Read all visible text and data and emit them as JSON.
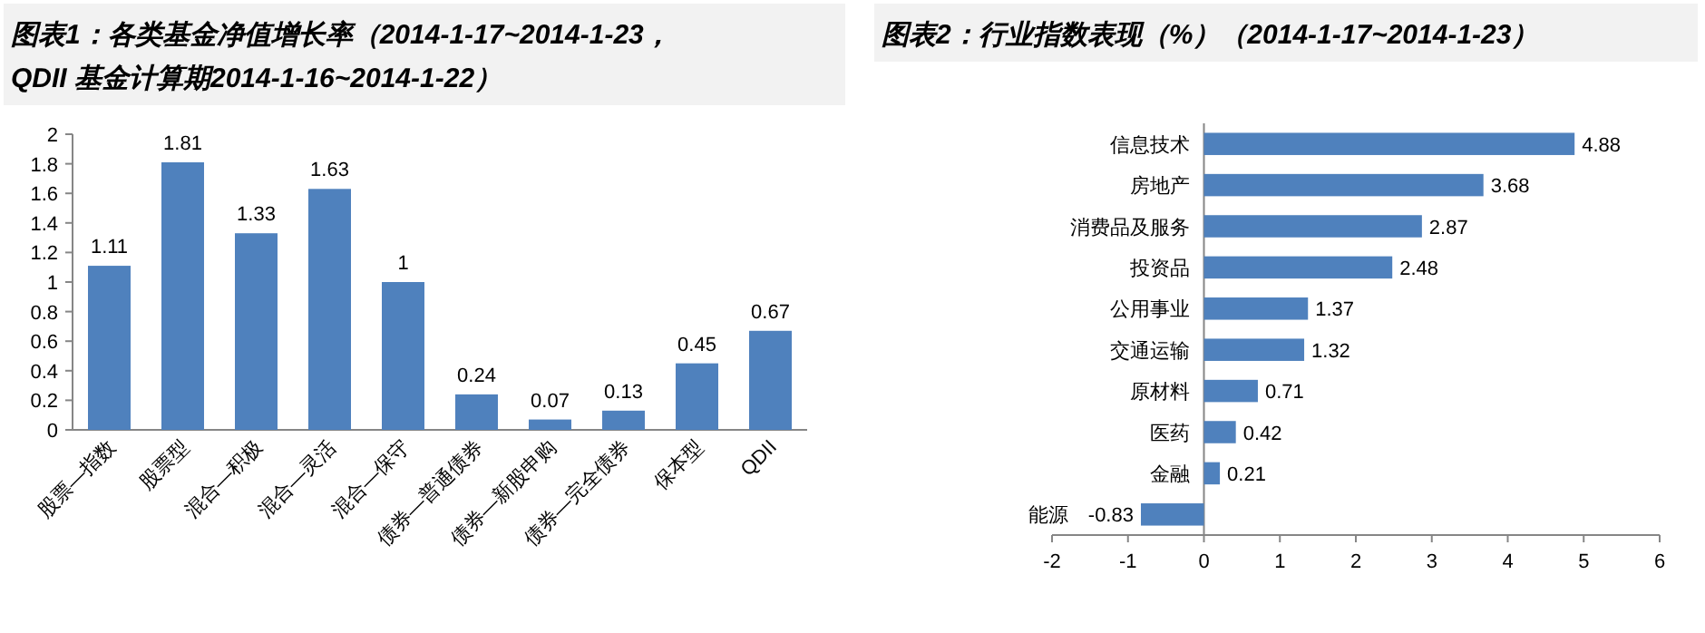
{
  "chart_data": [
    {
      "type": "bar",
      "title": "图表1：各类基金净值增长率（2014-1-17~2014-1-23，QDII 基金计算期2014-1-16~2014-1-22）",
      "categories": [
        "股票—指数",
        "股票型",
        "混合—积极",
        "混合—灵活",
        "混合—保守",
        "债券—普通债券",
        "债券—新股申购",
        "债券—完全债券",
        "保本型",
        "QDII"
      ],
      "values": [
        1.11,
        1.81,
        1.33,
        1.63,
        1,
        0.24,
        0.07,
        0.13,
        0.45,
        0.67
      ],
      "color": "#4f81bd",
      "data_labels": true,
      "ylim": [
        0,
        2
      ],
      "yticks": [
        0,
        0.2,
        0.4,
        0.6,
        0.8,
        1,
        1.2,
        1.4,
        1.6,
        1.8,
        2
      ]
    },
    {
      "type": "bar",
      "orientation": "horizontal",
      "title": "图表2：行业指数表现（%）（2014-1-17~2014-1-23）",
      "categories": [
        "信息技术",
        "房地产",
        "消费品及服务",
        "投资品",
        "公用事业",
        "交通运输",
        "原材料",
        "医药",
        "金融",
        "能源"
      ],
      "values": [
        4.88,
        3.68,
        2.87,
        2.48,
        1.37,
        1.32,
        0.71,
        0.42,
        0.21,
        -0.83
      ],
      "color": "#4f81bd",
      "data_labels": true,
      "xlim": [
        -2,
        6
      ],
      "xticks": [
        -2,
        -1,
        0,
        1,
        2,
        3,
        4,
        5,
        6
      ]
    }
  ]
}
